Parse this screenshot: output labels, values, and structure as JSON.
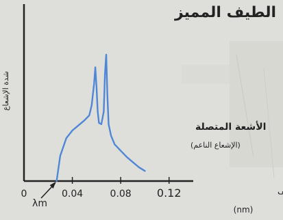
{
  "chart_data": {
    "type": "line",
    "title": "الطيف المميز",
    "ylabel": "شدة الإشعاع",
    "xlabel": "الطول الموجى",
    "xunit": "(nm)",
    "xlim": [
      0,
      0.14
    ],
    "xticks": [
      0,
      0.04,
      0.08,
      0.12
    ],
    "xtick_labels": [
      "0",
      "0.04",
      "0.08",
      "0.12"
    ],
    "lambda_min_label": "λm",
    "lambda_min": 0.027,
    "continuous_label": "الأشعة المتصلة",
    "continuous_sublabel": "(الإشعاع الناعم)",
    "grid": false,
    "series": [
      {
        "color": "#4f86d6",
        "x": [
          0.027,
          0.03,
          0.035,
          0.04,
          0.045,
          0.05,
          0.054,
          0.056,
          0.058,
          0.059,
          0.06,
          0.061,
          0.062,
          0.064,
          0.066,
          0.067,
          0.068,
          0.069,
          0.07,
          0.072,
          0.075,
          0.08,
          0.085,
          0.09,
          0.095,
          0.1
        ],
        "y": [
          0,
          0.2,
          0.34,
          0.4,
          0.44,
          0.48,
          0.52,
          0.6,
          0.77,
          0.9,
          0.74,
          0.55,
          0.46,
          0.45,
          0.55,
          0.85,
          1.0,
          0.68,
          0.45,
          0.36,
          0.29,
          0.24,
          0.19,
          0.15,
          0.11,
          0.08
        ]
      }
    ]
  }
}
